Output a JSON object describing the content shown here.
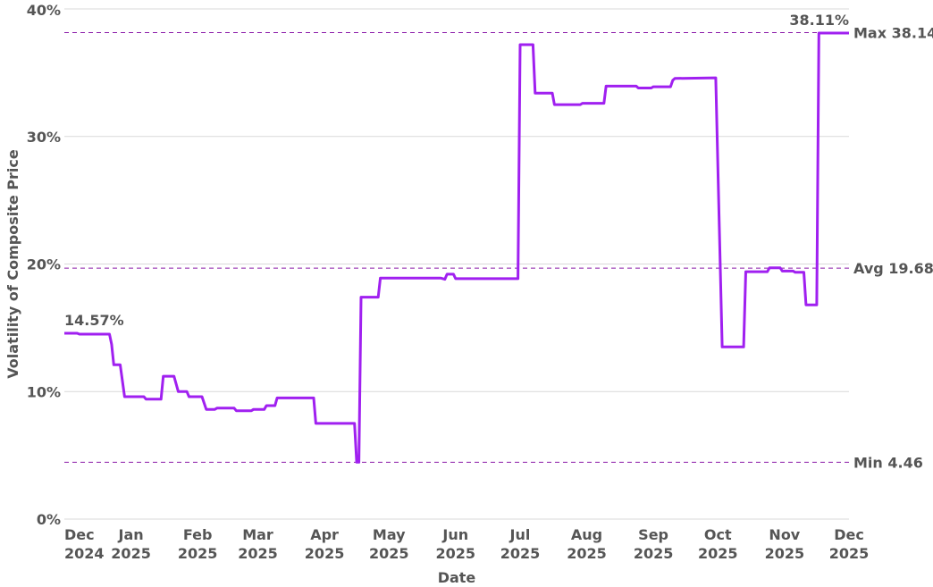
{
  "chart_data": {
    "type": "line",
    "xlabel": "Date",
    "ylabel": "Volatility of Composite Price",
    "ylim": [
      0,
      40
    ],
    "y_ticks": [
      0,
      10,
      20,
      30,
      40
    ],
    "y_tick_labels": [
      "0%",
      "10%",
      "20%",
      "30%",
      "40%"
    ],
    "xlim": [
      "2024-12-01",
      "2025-12-01"
    ],
    "x_ticks": [
      {
        "date": "2024-12-01",
        "line1": "Dec",
        "line2": "2024"
      },
      {
        "date": "2025-01-01",
        "line1": "Jan",
        "line2": "2025"
      },
      {
        "date": "2025-02-01",
        "line1": "Feb",
        "line2": "2025"
      },
      {
        "date": "2025-03-01",
        "line1": "Mar",
        "line2": "2025"
      },
      {
        "date": "2025-04-01",
        "line1": "Apr",
        "line2": "2025"
      },
      {
        "date": "2025-05-01",
        "line1": "May",
        "line2": "2025"
      },
      {
        "date": "2025-06-01",
        "line1": "Jun",
        "line2": "2025"
      },
      {
        "date": "2025-07-01",
        "line1": "Jul",
        "line2": "2025"
      },
      {
        "date": "2025-08-01",
        "line1": "Aug",
        "line2": "2025"
      },
      {
        "date": "2025-09-01",
        "line1": "Sep",
        "line2": "2025"
      },
      {
        "date": "2025-10-01",
        "line1": "Oct",
        "line2": "2025"
      },
      {
        "date": "2025-11-01",
        "line1": "Nov",
        "line2": "2025"
      },
      {
        "date": "2025-12-01",
        "line1": "Dec",
        "line2": "2025"
      }
    ],
    "grid": "horizontal",
    "series_color": "#a020f0",
    "reference_color": "#8b1aa8",
    "reference_lines": [
      {
        "label": "Max 38.14",
        "value": 38.14
      },
      {
        "label": "Avg 19.68",
        "value": 19.68
      },
      {
        "label": "Min 4.46",
        "value": 4.46
      }
    ],
    "start_label": "14.57%",
    "end_label": "38.11%",
    "series": [
      {
        "points": [
          [
            "2024-12-01",
            14.57
          ],
          [
            "2024-12-07",
            14.57
          ],
          [
            "2024-12-08",
            14.5
          ],
          [
            "2024-12-22",
            14.5
          ],
          [
            "2024-12-23",
            13.7
          ],
          [
            "2024-12-24",
            12.1
          ],
          [
            "2024-12-27",
            12.1
          ],
          [
            "2024-12-29",
            9.6
          ],
          [
            "2025-01-07",
            9.6
          ],
          [
            "2025-01-08",
            9.4
          ],
          [
            "2025-01-15",
            9.4
          ],
          [
            "2025-01-16",
            11.2
          ],
          [
            "2025-01-21",
            11.2
          ],
          [
            "2025-01-23",
            10.0
          ],
          [
            "2025-01-27",
            10.0
          ],
          [
            "2025-01-28",
            9.6
          ],
          [
            "2025-02-03",
            9.6
          ],
          [
            "2025-02-05",
            8.6
          ],
          [
            "2025-02-09",
            8.6
          ],
          [
            "2025-02-10",
            8.7
          ],
          [
            "2025-02-18",
            8.7
          ],
          [
            "2025-02-19",
            8.5
          ],
          [
            "2025-02-26",
            8.5
          ],
          [
            "2025-02-27",
            8.6
          ],
          [
            "2025-03-04",
            8.6
          ],
          [
            "2025-03-05",
            8.9
          ],
          [
            "2025-03-09",
            8.9
          ],
          [
            "2025-03-10",
            9.5
          ],
          [
            "2025-03-27",
            9.5
          ],
          [
            "2025-03-28",
            7.5
          ],
          [
            "2025-04-15",
            7.5
          ],
          [
            "2025-04-16",
            4.46
          ],
          [
            "2025-04-17",
            4.46
          ],
          [
            "2025-04-18",
            17.4
          ],
          [
            "2025-04-26",
            17.4
          ],
          [
            "2025-04-27",
            18.9
          ],
          [
            "2025-05-25",
            18.9
          ],
          [
            "2025-05-27",
            18.8
          ],
          [
            "2025-05-28",
            19.2
          ],
          [
            "2025-05-31",
            19.2
          ],
          [
            "2025-06-01",
            18.85
          ],
          [
            "2025-06-30",
            18.85
          ],
          [
            "2025-07-01",
            37.2
          ],
          [
            "2025-07-07",
            37.2
          ],
          [
            "2025-07-08",
            33.4
          ],
          [
            "2025-07-16",
            33.4
          ],
          [
            "2025-07-17",
            32.5
          ],
          [
            "2025-07-29",
            32.5
          ],
          [
            "2025-07-30",
            32.6
          ],
          [
            "2025-08-09",
            32.6
          ],
          [
            "2025-08-10",
            33.95
          ],
          [
            "2025-08-24",
            33.95
          ],
          [
            "2025-08-25",
            33.8
          ],
          [
            "2025-08-31",
            33.8
          ],
          [
            "2025-09-01",
            33.9
          ],
          [
            "2025-09-09",
            33.9
          ],
          [
            "2025-09-10",
            34.4
          ],
          [
            "2025-09-11",
            34.55
          ],
          [
            "2025-09-30",
            34.6
          ],
          [
            "2025-10-03",
            13.5
          ],
          [
            "2025-10-13",
            13.5
          ],
          [
            "2025-10-14",
            19.4
          ],
          [
            "2025-10-24",
            19.4
          ],
          [
            "2025-10-25",
            19.7
          ],
          [
            "2025-10-30",
            19.7
          ],
          [
            "2025-10-31",
            19.45
          ],
          [
            "2025-11-05",
            19.45
          ],
          [
            "2025-11-06",
            19.35
          ],
          [
            "2025-11-10",
            19.35
          ],
          [
            "2025-11-11",
            16.8
          ],
          [
            "2025-11-16",
            16.8
          ],
          [
            "2025-11-17",
            38.11
          ],
          [
            "2025-12-01",
            38.11
          ]
        ]
      }
    ]
  }
}
